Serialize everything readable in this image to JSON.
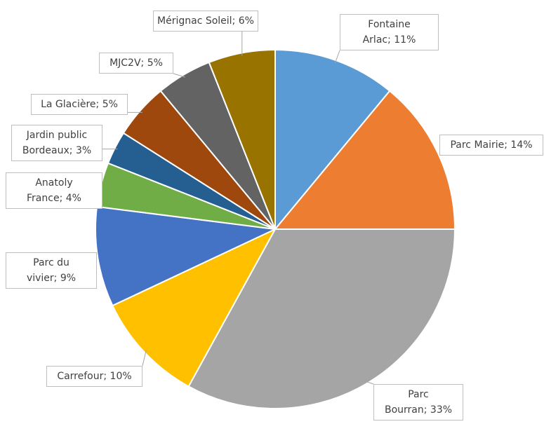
{
  "chart_data": {
    "type": "pie",
    "categories": [
      "Fontaine Arlac",
      "Parc Mairie",
      "Parc Bourran",
      "Carrefour",
      "Parc du vivier",
      "Anatoly France",
      "Jardin public Bordeaux",
      "La Glacière",
      "MJC2V",
      "Mérignac Soleil"
    ],
    "values": [
      11,
      14,
      33,
      10,
      9,
      4,
      3,
      5,
      5,
      6
    ],
    "value_labels": [
      "11%",
      "14%",
      "33%",
      "10%",
      "9%",
      "4%",
      "3%",
      "5%",
      "5%",
      "6%"
    ],
    "label_separator": "; ",
    "colors": [
      "#5b9bd5",
      "#ed7d31",
      "#a5a5a5",
      "#ffc000",
      "#4472c4",
      "#70ad47",
      "#255e91",
      "#9e480e",
      "#636363",
      "#997300"
    ]
  }
}
